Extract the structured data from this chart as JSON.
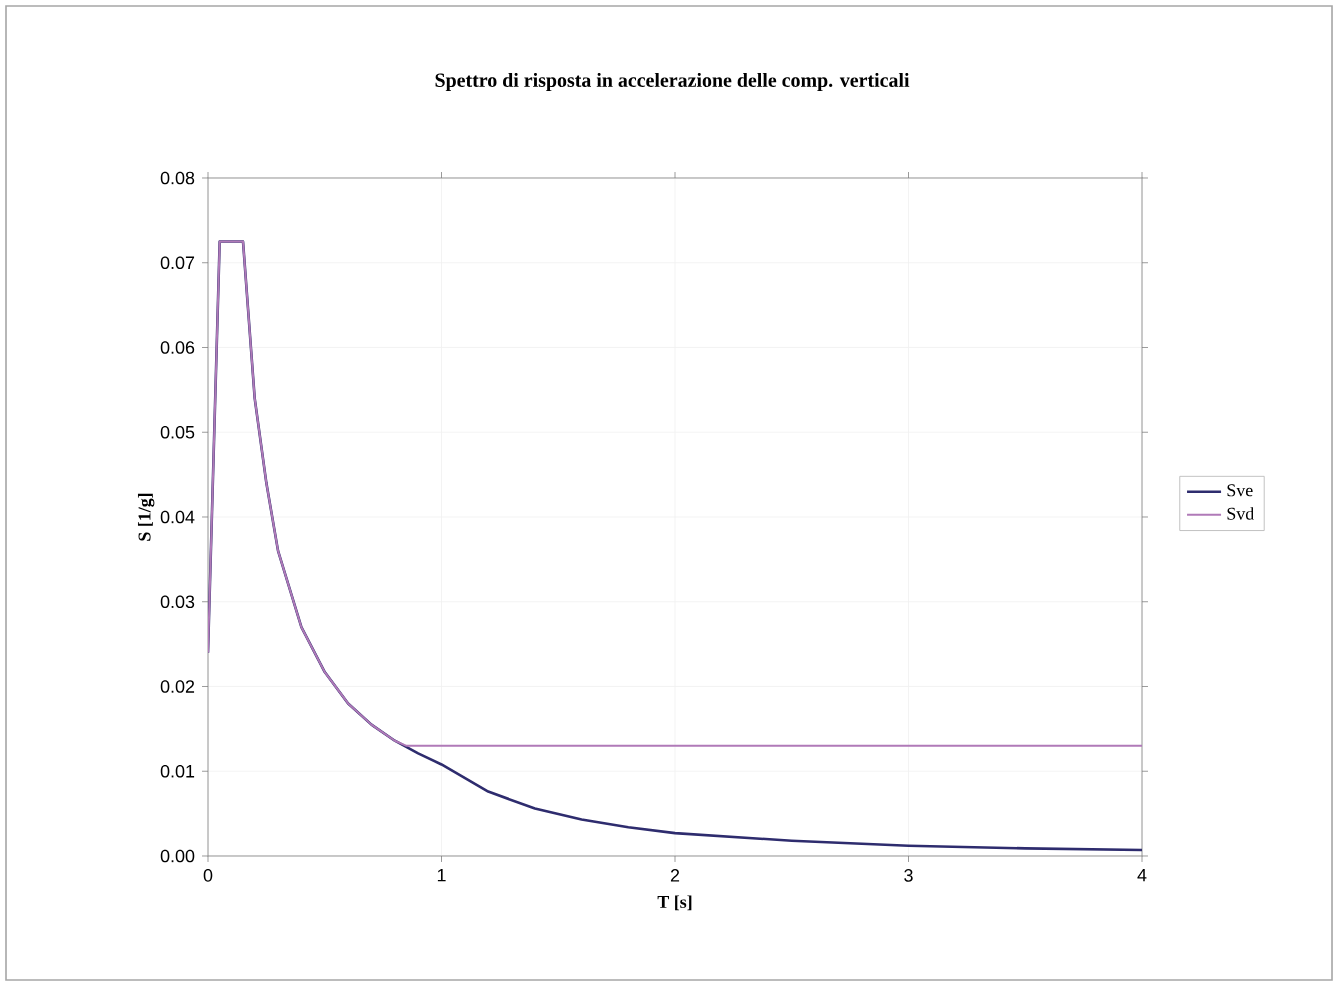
{
  "chart_data": {
    "type": "line",
    "title": "Spettro di risposta in accelerazione delle comp. verticali",
    "xlabel": "T [s]",
    "ylabel": "S [1/g]",
    "xlim": [
      0,
      4
    ],
    "xticks": [
      0,
      1,
      2,
      3,
      4
    ],
    "ylim": [
      0,
      0.08
    ],
    "yticks": [
      {
        "value": 0,
        "label": "0.00"
      },
      0.01,
      0.02,
      0.03,
      0.04,
      0.05,
      0.06,
      0.07,
      0.08
    ],
    "grid": true,
    "legend": "right",
    "marker": "none",
    "line_style": "solid",
    "series": [
      {
        "name": "Sve",
        "color": "#2e2c6e",
        "x": [
          0,
          0.05,
          0.15,
          0.2,
          0.25,
          0.3,
          0.4,
          0.5,
          0.6,
          0.7,
          0.8,
          0.9,
          1.0,
          1.2,
          1.4,
          1.6,
          1.8,
          2.0,
          2.5,
          3.0,
          3.5,
          4.0
        ],
        "values": [
          0.024,
          0.0725,
          0.0725,
          0.054,
          0.044,
          0.036,
          0.027,
          0.0217,
          0.018,
          0.0155,
          0.0136,
          0.0121,
          0.0108,
          0.0076,
          0.0056,
          0.0043,
          0.0034,
          0.0027,
          0.0018,
          0.0012,
          0.0009,
          0.0007
        ]
      },
      {
        "name": "Svd",
        "color": "#b07ab8",
        "x": [
          0,
          0.05,
          0.15,
          0.2,
          0.25,
          0.3,
          0.4,
          0.5,
          0.6,
          0.7,
          0.8,
          0.85,
          4.0
        ],
        "values": [
          0.024,
          0.0725,
          0.0725,
          0.054,
          0.044,
          0.036,
          0.027,
          0.0217,
          0.018,
          0.0155,
          0.0136,
          0.013,
          0.013
        ]
      }
    ]
  }
}
